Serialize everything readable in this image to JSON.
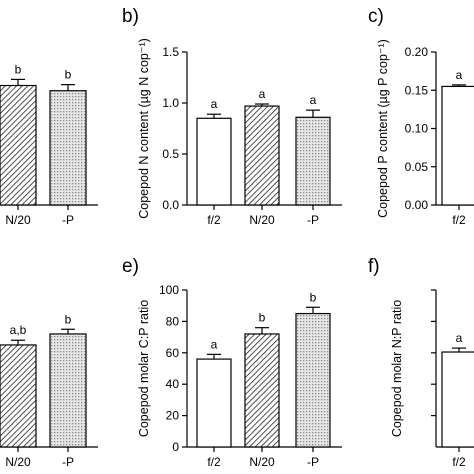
{
  "chart_data": [
    {
      "panel": "",
      "type": "bar",
      "categories": [
        "N/20",
        "-P"
      ],
      "values": [
        1.37,
        1.31
      ],
      "errors": [
        0.07,
        0.07
      ],
      "significance": [
        "b",
        "b"
      ],
      "patterns": [
        "hatch",
        "dots"
      ],
      "ylim": [
        0,
        1.8
      ],
      "yticks": [],
      "ylabel": ""
    },
    {
      "panel": "b)",
      "type": "bar",
      "categories": [
        "f/2",
        "N/20",
        "-P"
      ],
      "values": [
        0.85,
        0.97,
        0.86
      ],
      "errors": [
        0.04,
        0.02,
        0.07
      ],
      "significance": [
        "a",
        "a",
        "a"
      ],
      "patterns": [
        "white",
        "hatch",
        "dots"
      ],
      "ylim": [
        0,
        1.5
      ],
      "yticks": [
        "0.0",
        "0.5",
        "1.0",
        "1.5"
      ],
      "ylabel": "Copepod N content (µg N cop⁻¹)"
    },
    {
      "panel": "c)",
      "type": "bar",
      "categories": [
        "f/2"
      ],
      "values": [
        0.155
      ],
      "errors": [
        0.002
      ],
      "significance": [
        "a"
      ],
      "patterns": [
        "white"
      ],
      "ylim": [
        0,
        0.2
      ],
      "yticks": [
        "0.00",
        "0.05",
        "0.10",
        "0.15",
        "0.20"
      ],
      "ylabel": "Copepod P content (µg P cop⁻¹)"
    },
    {
      "panel": "",
      "type": "bar",
      "categories": [
        "N/20",
        "-P"
      ],
      "values": [
        65,
        72
      ],
      "errors": [
        3,
        3
      ],
      "significance": [
        "a,b",
        "b"
      ],
      "patterns": [
        "hatch",
        "dots"
      ],
      "ylim": [
        0,
        100
      ],
      "yticks": [],
      "ylabel": ""
    },
    {
      "panel": "e)",
      "type": "bar",
      "categories": [
        "f/2",
        "N/20",
        "-P"
      ],
      "values": [
        56,
        72,
        85
      ],
      "errors": [
        3,
        4,
        4
      ],
      "significance": [
        "a",
        "b",
        "b"
      ],
      "patterns": [
        "white",
        "hatch",
        "dots"
      ],
      "ylim": [
        0,
        100
      ],
      "yticks": [
        "0",
        "20",
        "40",
        "60",
        "80",
        "100"
      ],
      "ylabel": "Copepod molar C:P ratio"
    },
    {
      "panel": "f)",
      "type": "bar",
      "categories": [
        "f/2"
      ],
      "values": [
        12.1
      ],
      "errors": [
        0.5
      ],
      "significance": [
        "a"
      ],
      "patterns": [
        "white"
      ],
      "ylim": [
        0,
        20
      ],
      "yticks": [],
      "ylabel": "Copepod molar N:P ratio"
    }
  ]
}
